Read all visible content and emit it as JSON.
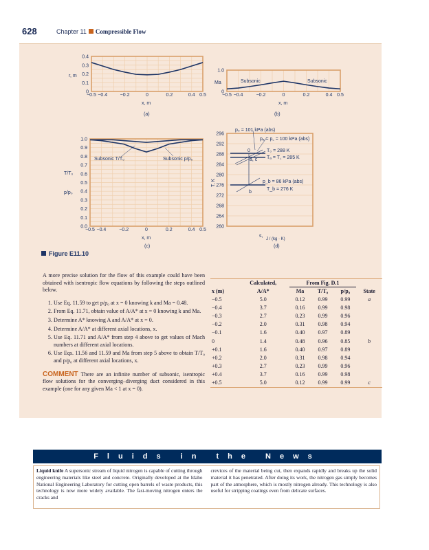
{
  "header": {
    "page_number": "628",
    "chapter": "Chapter 11",
    "section": "Compressible Flow"
  },
  "figure": {
    "label": "Figure E11.10",
    "a": {
      "ylabel": "r, m",
      "xlabel": "x, m",
      "caption": "(a)",
      "yticks": [
        "0",
        "0.1",
        "0.2",
        "0.3",
        "0.4"
      ],
      "xticks": [
        "−0.5",
        "−0.4",
        "−0.2",
        "0",
        "0.2",
        "0.4",
        "0.5"
      ]
    },
    "b": {
      "ylabel": "Ma",
      "xlabel": "x, m",
      "caption": "(b)",
      "yticks": [
        "0",
        "1.0"
      ],
      "xticks": [
        "−0.5",
        "−0.4",
        "−0.2",
        "0",
        "0.2",
        "0.4",
        "0.5"
      ],
      "left_label": "Subsonic",
      "right_label": "Subsonic"
    },
    "c": {
      "ylabel_T": "T/T₀",
      "ylabel_p": "p/p₀",
      "xlabel": "x, m",
      "caption": "(c)",
      "yticks": [
        "0.0",
        "0.1",
        "0.2",
        "0.3",
        "0.4",
        "0.5",
        "0.6",
        "0.7",
        "0.8",
        "0.9",
        "1.0"
      ],
      "xticks": [
        "−0.5",
        "−0.4",
        "−0.2",
        "0",
        "0.2",
        "0.4",
        "0.5"
      ],
      "label_T": "Subsonic T/T₀",
      "label_p": "Subsonic p/p₀"
    },
    "d": {
      "ylabel": "T, K",
      "xlabel": "s,",
      "xunit": "J / (kg · K)",
      "caption": "(d)",
      "yticks": [
        "260",
        "264",
        "268",
        "272",
        "276",
        "280",
        "284",
        "288",
        "292",
        "296"
      ],
      "p0": "p₀ = 101 kPa (abs)",
      "pa": "pₐ = p꜀ = 100 kPa (abs)",
      "T0": "T₀ = 288 K",
      "Ta": "Tₐ = T꜀ = 285 K",
      "pb": "p_b = 86 kPa (abs)",
      "Tb": "T_b = 276 K",
      "pt0": "0",
      "ptac": "a, c",
      "ptb": "b"
    }
  },
  "chart_data": [
    {
      "type": "line",
      "title": "(a)",
      "xlabel": "x, m",
      "ylabel": "r, m",
      "xlim": [
        -0.5,
        0.5
      ],
      "ylim": [
        0,
        0.4
      ],
      "x": [
        -0.5,
        -0.4,
        -0.3,
        -0.2,
        -0.1,
        0,
        0.1,
        0.2,
        0.3,
        0.4,
        0.5
      ],
      "series": [
        {
          "name": "r",
          "values": [
            0.33,
            0.29,
            0.25,
            0.22,
            0.195,
            0.19,
            0.195,
            0.22,
            0.25,
            0.29,
            0.33
          ]
        }
      ]
    },
    {
      "type": "line",
      "title": "(b)",
      "xlabel": "x, m",
      "ylabel": "Ma",
      "xlim": [
        -0.5,
        0.5
      ],
      "ylim": [
        0,
        1.0
      ],
      "x": [
        -0.5,
        -0.4,
        -0.3,
        -0.2,
        -0.1,
        0,
        0.1,
        0.2,
        0.3,
        0.4,
        0.5
      ],
      "series": [
        {
          "name": "Ma",
          "values": [
            0.12,
            0.16,
            0.23,
            0.31,
            0.4,
            0.48,
            0.4,
            0.31,
            0.23,
            0.16,
            0.12
          ]
        }
      ]
    },
    {
      "type": "line",
      "title": "(c)",
      "xlabel": "x, m",
      "ylabel": "T/T0, p/p0",
      "xlim": [
        -0.5,
        0.5
      ],
      "ylim": [
        0,
        1.0
      ],
      "x": [
        -0.5,
        -0.4,
        -0.3,
        -0.2,
        -0.1,
        0,
        0.1,
        0.2,
        0.3,
        0.4,
        0.5
      ],
      "series": [
        {
          "name": "T/T0",
          "values": [
            0.99,
            0.99,
            0.99,
            0.98,
            0.97,
            0.96,
            0.97,
            0.98,
            0.99,
            0.99,
            0.99
          ]
        },
        {
          "name": "p/p0",
          "values": [
            0.99,
            0.98,
            0.96,
            0.94,
            0.89,
            0.85,
            0.89,
            0.94,
            0.96,
            0.98,
            0.99
          ]
        }
      ]
    },
    {
      "type": "line",
      "title": "(d)",
      "xlabel": "s, J/(kg·K)",
      "ylabel": "T, K",
      "ylim": [
        260,
        296
      ],
      "levels": [
        {
          "name": "T0",
          "value": 288
        },
        {
          "name": "Ta",
          "value": 285
        },
        {
          "name": "Tb",
          "value": 276
        }
      ]
    }
  ],
  "text": {
    "intro": "A more precise solution for the flow of this example could have been obtained with isentropic flow equations by following the steps outlined below.",
    "steps": [
      "Use Eq. 11.59 to get p/p₀ at x = 0 knowing k and Ma = 0.48.",
      "From Eq. 11.71, obtain value of A/A* at x = 0 knowing k and Ma.",
      "Determine A* knowing A and A/A* at x = 0.",
      "Determine A/A* at different axial locations, x.",
      "Use Eq. 11.71 and A/A* from step 4 above to get values of Mach numbers at different axial locations.",
      "Use Eqs. 11.56 and 11.59 and Ma from step 5 above to obtain T/T₀ and p/p₀ at different axial locations, x."
    ],
    "comment_label": "COMMENT",
    "comment": "There are an infinite number of subsonic, isentropic flow solutions for the converging–diverging duct considered in this example (one for any given Ma < 1 at x = 0)."
  },
  "table": {
    "group_calc": "Calculated,",
    "group_fig": "From Fig. D.1",
    "headers": [
      "x (m)",
      "A/A*",
      "Ma",
      "T/T₀",
      "p/p₀",
      "State"
    ],
    "rows": [
      [
        "−0.5",
        "5.0",
        "0.12",
        "0.99",
        "0.99",
        "a"
      ],
      [
        "−0.4",
        "3.7",
        "0.16",
        "0.99",
        "0.98",
        ""
      ],
      [
        "−0.3",
        "2.7",
        "0.23",
        "0.99",
        "0.96",
        ""
      ],
      [
        "−0.2",
        "2.0",
        "0.31",
        "0.98",
        "0.94",
        ""
      ],
      [
        "−0.1",
        "1.6",
        "0.40",
        "0.97",
        "0.89",
        ""
      ],
      [
        "0",
        "1.4",
        "0.48",
        "0.96",
        "0.85",
        "b"
      ],
      [
        "+0.1",
        "1.6",
        "0.40",
        "0.97",
        "0.89",
        ""
      ],
      [
        "+0.2",
        "2.0",
        "0.31",
        "0.98",
        "0.94",
        ""
      ],
      [
        "+0.3",
        "2.7",
        "0.23",
        "0.99",
        "0.96",
        ""
      ],
      [
        "+0.4",
        "3.7",
        "0.16",
        "0.99",
        "0.98",
        ""
      ],
      [
        "+0.5",
        "5.0",
        "0.12",
        "0.99",
        "0.99",
        "c"
      ]
    ]
  },
  "news": {
    "banner": "Fluids in the News",
    "title": "Liquid knife",
    "col1": "A supersonic stream of liquid nitrogen is capable of cutting through engineering materials like steel and concrete. Originally developed at the Idaho National Engineering Laboratory for cutting open barrels of waste products, this technology is now more widely available. The fast-moving nitrogen enters the cracks and",
    "col2": "crevices of the material being cut, then expands rapidly and breaks up the solid material it has penetrated. After doing its work, the nitrogen gas simply becomes part of the atmosphere, which is mostly nitrogen already. This technology is also useful for stripping coatings even from delicate surfaces."
  },
  "colors": {
    "frame": "#d9a06b",
    "curve": "#1e3566",
    "box": "#f7e7da",
    "banner": "#002b5c",
    "accent": "#c8641e"
  }
}
